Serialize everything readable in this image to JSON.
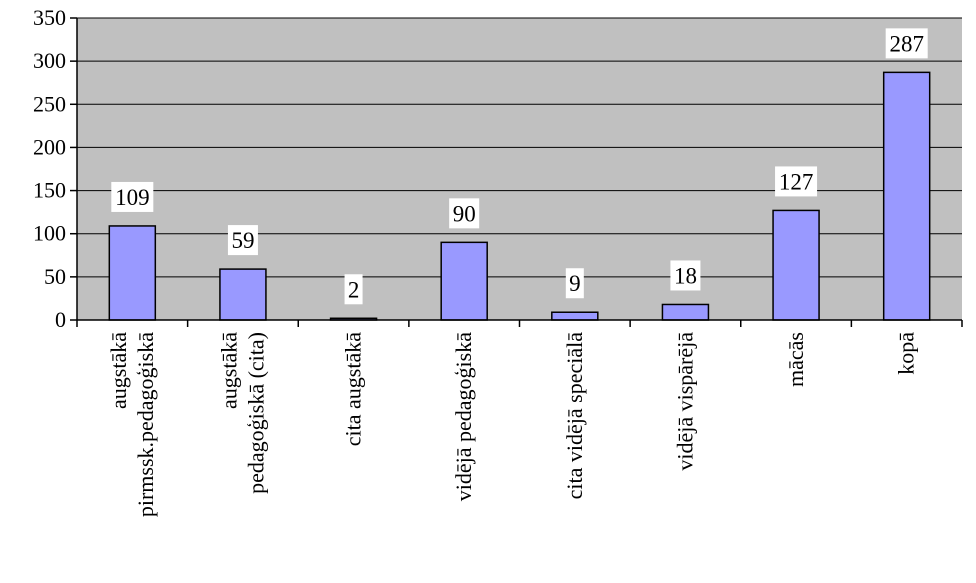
{
  "chart_data": {
    "type": "bar",
    "categories": [
      [
        "augstākā",
        "pirmssk.pedagoģiskā"
      ],
      [
        "augstākā",
        "pedagoģiskā (cita)"
      ],
      [
        "cita augstākā"
      ],
      [
        "vidējā pedagoģiskā"
      ],
      [
        "cita vidējā speciālā"
      ],
      [
        "vidējā vispārējā"
      ],
      [
        "mācās"
      ],
      [
        "kopā"
      ]
    ],
    "values": [
      109,
      59,
      2,
      90,
      9,
      18,
      127,
      287
    ],
    "title": "",
    "xlabel": "",
    "ylabel": "",
    "ylim": [
      0,
      350
    ],
    "yticks": [
      0,
      50,
      100,
      150,
      200,
      250,
      300,
      350
    ],
    "grid": true,
    "legend": "none",
    "data_labels": true,
    "colors": {
      "plot_background": "#c0c0c0",
      "bar_fill": "#9999ff",
      "bar_stroke": "#000000",
      "grid": "#000000",
      "label_background": "#ffffff"
    }
  }
}
